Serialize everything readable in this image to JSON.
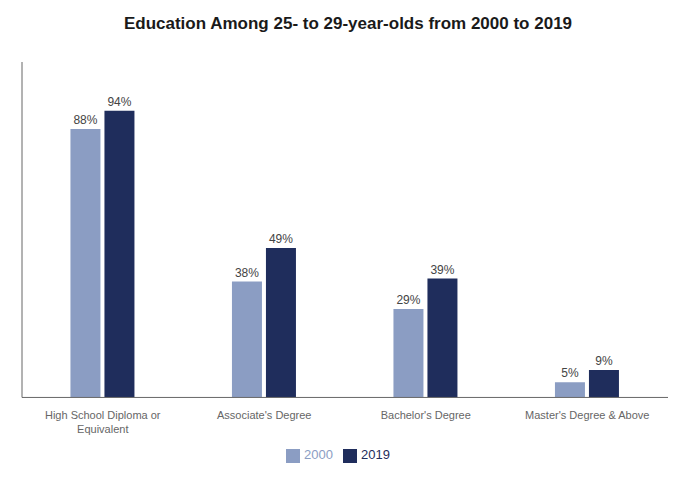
{
  "chart_data": {
    "type": "bar",
    "title": "Education Among 25- to 29-year-olds from 2000 to 2019",
    "categories": [
      "High School Diploma or\nEquivalent",
      "Associate's Degree",
      "Bachelor's Degree",
      "Master's Degree & Above"
    ],
    "series": [
      {
        "name": "2000",
        "color": "#8B9DC3",
        "values": [
          88,
          38,
          29,
          5
        ],
        "value_labels": [
          "88%",
          "38%",
          "29%",
          "5%"
        ]
      },
      {
        "name": "2019",
        "color": "#1F2D5C",
        "values": [
          94,
          49,
          39,
          9
        ],
        "value_labels": [
          "94%",
          "49%",
          "39%",
          "9%"
        ]
      }
    ],
    "ylim": [
      0,
      110
    ],
    "data_labels": true,
    "tick_labels": "x",
    "legend": "bottom",
    "grid": false
  }
}
